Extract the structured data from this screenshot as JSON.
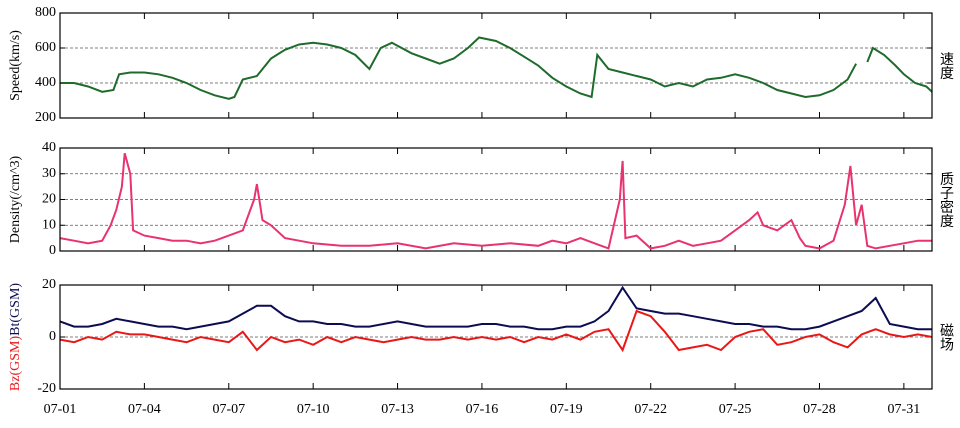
{
  "chart_data": [
    {
      "type": "line",
      "ylabel": "Speed(km/s)",
      "right_label": "速度",
      "color": "#1f6b2b",
      "grid": true,
      "xlim": [
        0,
        31
      ],
      "xticks": [
        0,
        3,
        6,
        9,
        12,
        15,
        18,
        21,
        24,
        27,
        30
      ],
      "ylim": [
        200,
        800
      ],
      "yticks": [
        200,
        400,
        600,
        800
      ],
      "x": [
        0,
        0.5,
        1,
        1.5,
        1.9,
        2.1,
        2.5,
        3,
        3.5,
        4,
        4.5,
        5,
        5.5,
        6,
        6.2,
        6.5,
        7,
        7.5,
        8,
        8.5,
        9,
        9.5,
        10,
        10.5,
        11,
        11.4,
        11.8,
        12.5,
        13,
        13.5,
        14,
        14.5,
        14.9,
        15.5,
        16,
        16.5,
        17,
        17.5,
        18,
        18.5,
        18.9,
        19.1,
        19.5,
        20,
        20.5,
        21,
        21.5,
        22,
        22.5,
        23,
        23.5,
        24,
        24.5,
        25,
        25.5,
        26,
        26.5,
        27,
        27.5,
        28,
        28.3,
        28.5,
        28.7,
        28.9,
        29.3,
        29.7,
        30,
        30.4,
        30.8,
        31
      ],
      "values": [
        400,
        400,
        380,
        350,
        360,
        450,
        460,
        460,
        450,
        430,
        400,
        360,
        330,
        310,
        320,
        420,
        440,
        540,
        590,
        620,
        630,
        620,
        600,
        560,
        480,
        600,
        630,
        570,
        540,
        510,
        540,
        600,
        660,
        640,
        600,
        550,
        500,
        430,
        380,
        340,
        320,
        560,
        480,
        460,
        440,
        420,
        380,
        400,
        380,
        420,
        430,
        450,
        430,
        400,
        360,
        340,
        320,
        330,
        360,
        420,
        510,
        null,
        520,
        600,
        560,
        500,
        450,
        400,
        380,
        350
      ]
    },
    {
      "type": "line",
      "ylabel": "Density(/cm^3)",
      "right_label": "质子密度",
      "color": "#e8336e",
      "grid": true,
      "xlim": [
        0,
        31
      ],
      "xticks": [
        0,
        3,
        6,
        9,
        12,
        15,
        18,
        21,
        24,
        27,
        30
      ],
      "ylim": [
        0,
        40
      ],
      "yticks": [
        0,
        10,
        20,
        30,
        40
      ],
      "x": [
        0,
        0.5,
        1,
        1.5,
        1.8,
        2,
        2.2,
        2.3,
        2.5,
        2.6,
        3,
        3.5,
        4,
        4.5,
        5,
        5.5,
        6,
        6.5,
        6.9,
        7,
        7.2,
        7.5,
        8,
        8.5,
        9,
        10,
        11,
        12,
        13,
        14,
        15,
        16,
        17,
        17.5,
        18,
        18.5,
        19,
        19.5,
        19.9,
        20,
        20.1,
        20.5,
        21,
        21.5,
        22,
        22.5,
        23,
        23.5,
        24,
        24.5,
        24.8,
        25,
        25.5,
        26,
        26.3,
        26.5,
        27,
        27.5,
        27.9,
        28.1,
        28.3,
        28.5,
        28.7,
        29,
        29.5,
        30,
        30.5,
        31
      ],
      "values": [
        5,
        4,
        3,
        4,
        10,
        16,
        25,
        38,
        30,
        8,
        6,
        5,
        4,
        4,
        3,
        4,
        6,
        8,
        20,
        26,
        12,
        10,
        5,
        4,
        3,
        2,
        2,
        3,
        1,
        3,
        2,
        3,
        2,
        4,
        3,
        5,
        3,
        1,
        20,
        35,
        5,
        6,
        1,
        2,
        4,
        2,
        3,
        4,
        8,
        12,
        15,
        10,
        8,
        12,
        5,
        2,
        1,
        4,
        18,
        33,
        10,
        18,
        2,
        1,
        2,
        3,
        4,
        4
      ]
    },
    {
      "type": "line",
      "right_label": "磁场",
      "grid": true,
      "xlim": [
        0,
        31
      ],
      "xticks": [
        {
          "value": 0,
          "label": "07-01"
        },
        {
          "value": 3,
          "label": "07-04"
        },
        {
          "value": 6,
          "label": "07-07"
        },
        {
          "value": 9,
          "label": "07-10"
        },
        {
          "value": 12,
          "label": "07-13"
        },
        {
          "value": 15,
          "label": "07-16"
        },
        {
          "value": 18,
          "label": "07-19"
        },
        {
          "value": 21,
          "label": "07-22"
        },
        {
          "value": 24,
          "label": "07-25"
        },
        {
          "value": 27,
          "label": "07-28"
        },
        {
          "value": 30,
          "label": "07-31"
        }
      ],
      "ylim": [
        -20,
        20
      ],
      "yticks": [
        -20,
        0,
        20
      ],
      "x": [
        0,
        0.5,
        1,
        1.5,
        2,
        2.5,
        3,
        3.5,
        4,
        4.5,
        5,
        5.5,
        6,
        6.5,
        7,
        7.5,
        8,
        8.5,
        9,
        9.5,
        10,
        10.5,
        11,
        11.5,
        12,
        12.5,
        13,
        13.5,
        14,
        14.5,
        15,
        15.5,
        16,
        16.5,
        17,
        17.5,
        18,
        18.5,
        19,
        19.5,
        20,
        20.5,
        21,
        21.5,
        22,
        22.5,
        23,
        23.5,
        24,
        24.5,
        25,
        25.5,
        26,
        26.5,
        27,
        27.5,
        28,
        28.5,
        29,
        29.5,
        30,
        30.5,
        31
      ],
      "series": [
        {
          "name": "Bz(GSM)",
          "color": "#e81818",
          "values": [
            -1,
            -2,
            0,
            -1,
            2,
            1,
            1,
            0,
            -1,
            -2,
            0,
            -1,
            -2,
            2,
            -5,
            0,
            -2,
            -1,
            -3,
            0,
            -2,
            0,
            -1,
            -2,
            -1,
            0,
            -1,
            -1,
            0,
            -1,
            0,
            -1,
            0,
            -2,
            0,
            -1,
            1,
            -1,
            2,
            3,
            -5,
            10,
            8,
            2,
            -5,
            -4,
            -3,
            -5,
            0,
            2,
            3,
            -3,
            -2,
            0,
            1,
            -2,
            -4,
            1,
            3,
            1,
            0,
            1,
            0
          ]
        },
        {
          "name": "Bt(GSM)",
          "color": "#0c0c52",
          "values": [
            6,
            4,
            4,
            5,
            7,
            6,
            5,
            4,
            4,
            3,
            4,
            5,
            6,
            9,
            12,
            12,
            8,
            6,
            6,
            5,
            5,
            4,
            4,
            5,
            6,
            5,
            4,
            4,
            4,
            4,
            5,
            5,
            4,
            4,
            3,
            3,
            4,
            4,
            6,
            10,
            19,
            11,
            10,
            9,
            9,
            8,
            7,
            6,
            5,
            5,
            4,
            4,
            3,
            3,
            4,
            6,
            8,
            10,
            15,
            5,
            4,
            3,
            3
          ]
        }
      ]
    }
  ]
}
